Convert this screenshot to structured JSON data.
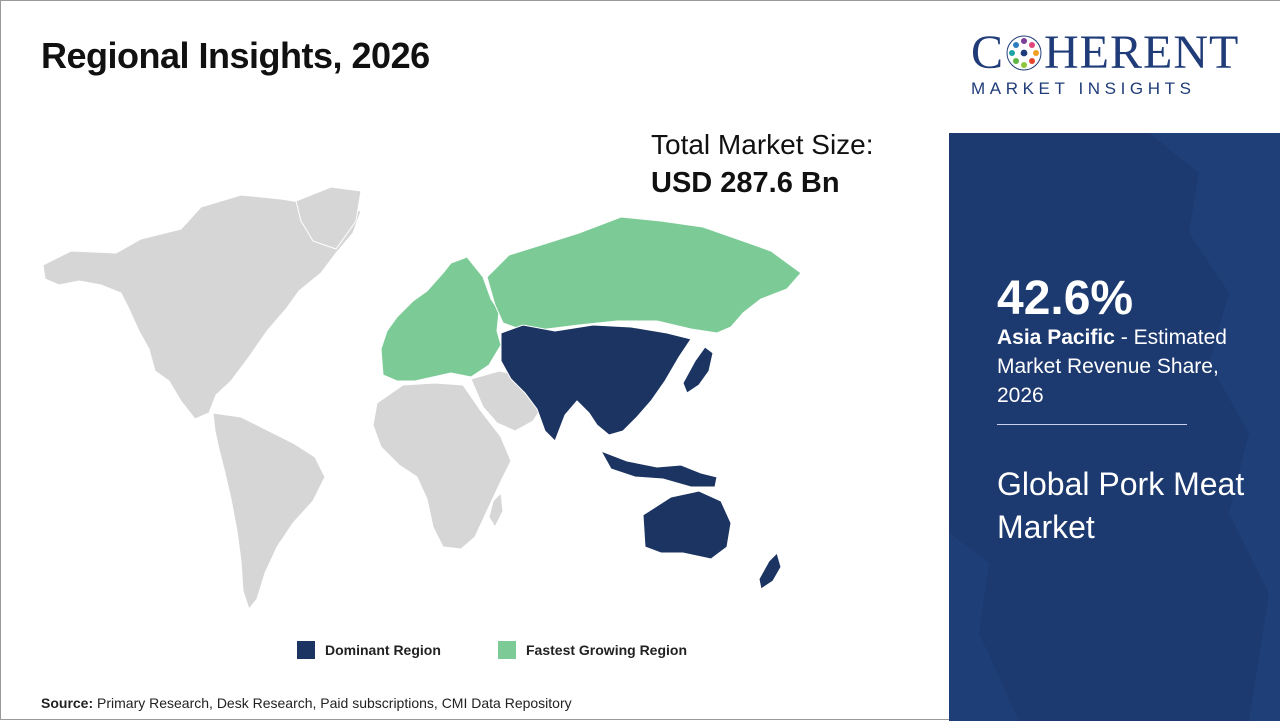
{
  "slide": {
    "title": "Regional Insights, 2026",
    "total_market_label": "Total Market Size:",
    "total_market_value": "USD 287.6 Bn"
  },
  "map": {
    "regions": [
      {
        "name": "North America",
        "status": "other"
      },
      {
        "name": "Latin America",
        "status": "other"
      },
      {
        "name": "Europe",
        "status": "fastest_growing"
      },
      {
        "name": "Russia",
        "status": "fastest_growing"
      },
      {
        "name": "Middle East",
        "status": "other"
      },
      {
        "name": "Africa",
        "status": "other"
      },
      {
        "name": "Asia Pacific",
        "status": "dominant"
      }
    ],
    "colors": {
      "dominant": "#1c3461",
      "fastest_growing": "#7ccb97",
      "other": "#d6d6d6"
    }
  },
  "legend": {
    "dominant_label": "Dominant Region",
    "fastest_label": "Fastest Growing Region"
  },
  "source": {
    "label": "Source:",
    "text": "Primary Research, Desk Research, Paid subscriptions, CMI Data Repository"
  },
  "logo": {
    "letter_before": "C",
    "letters_after": "HERENT",
    "sub": "MARKET INSIGHTS"
  },
  "panel": {
    "share_value": "42.6%",
    "region_name": "Asia Pacific",
    "share_desc": " - Estimated Market Revenue Share, 2026",
    "market_name": "Global Pork Meat Market"
  },
  "colors": {
    "brand_navy": "#1f3c78",
    "panel_bg": "#1c3a70"
  }
}
